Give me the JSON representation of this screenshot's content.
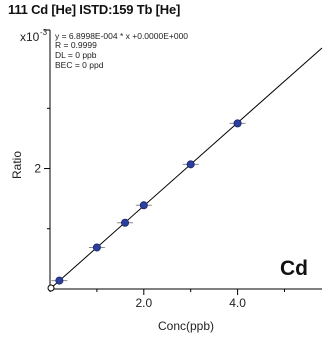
{
  "header": {
    "title": "111 Cd [He] ISTD:159 Tb [He]"
  },
  "chart_data": {
    "type": "scatter",
    "title": "111 Cd [He] ISTD:159 Tb [He]",
    "xlabel": "Conc(ppb)",
    "ylabel": "Ratio",
    "y_multiplier_label": "x10",
    "y_multiplier_exp": "-3",
    "xlim": [
      0,
      5.8
    ],
    "ylim": [
      0,
      4.3
    ],
    "x_ticks": [
      2.0,
      4.0
    ],
    "x_tick_labels": [
      "2.0",
      "4.0"
    ],
    "y_ticks": [
      2
    ],
    "y_tick_labels": [
      "2"
    ],
    "grid": false,
    "element_label": "Cd",
    "annotations": [
      "y = 6.8998E-004 * x +0.0000E+000",
      "R = 0.9999",
      "DL = 0 ppb",
      "BEC = 0 ppd"
    ],
    "fit": {
      "slope": 0.68998,
      "intercept": 0.0,
      "x_range": [
        0,
        5.8
      ]
    },
    "points": [
      {
        "x": 0.0,
        "y": 0.0,
        "origin": true
      },
      {
        "x": 0.2,
        "y": 0.14
      },
      {
        "x": 1.0,
        "y": 0.69
      },
      {
        "x": 1.6,
        "y": 1.1
      },
      {
        "x": 2.0,
        "y": 1.39
      },
      {
        "x": 3.0,
        "y": 2.07
      },
      {
        "x": 4.0,
        "y": 2.75
      }
    ],
    "colors": {
      "point_fill": "#2b3f9e",
      "point_edge": "#1a2466",
      "line": "#000000",
      "error_bar": "#8a8a8a"
    }
  }
}
